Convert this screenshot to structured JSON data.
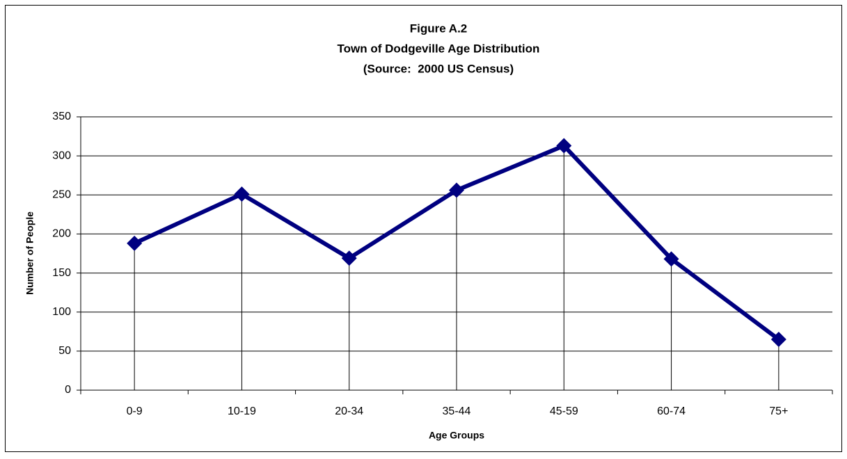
{
  "chart_data": {
    "type": "line",
    "title": "Figure A.2",
    "subtitle": "Town of Dodgeville Age Distribution",
    "source": "(Source:  2000 US Census)",
    "x_label": "Age Groups",
    "y_label": "Number of People",
    "categories": [
      "0-9",
      "10-19",
      "20-34",
      "35-44",
      "45-59",
      "60-74",
      "75+"
    ],
    "series": [
      {
        "name": "Number of People",
        "color": "#000080",
        "values": [
          188,
          251,
          169,
          256,
          313,
          168,
          65
        ]
      }
    ],
    "ylim": [
      0,
      350
    ],
    "yticks": [
      0,
      50,
      100,
      150,
      200,
      250,
      300,
      350
    ],
    "grid": true,
    "drop_lines": true,
    "legend": false
  }
}
